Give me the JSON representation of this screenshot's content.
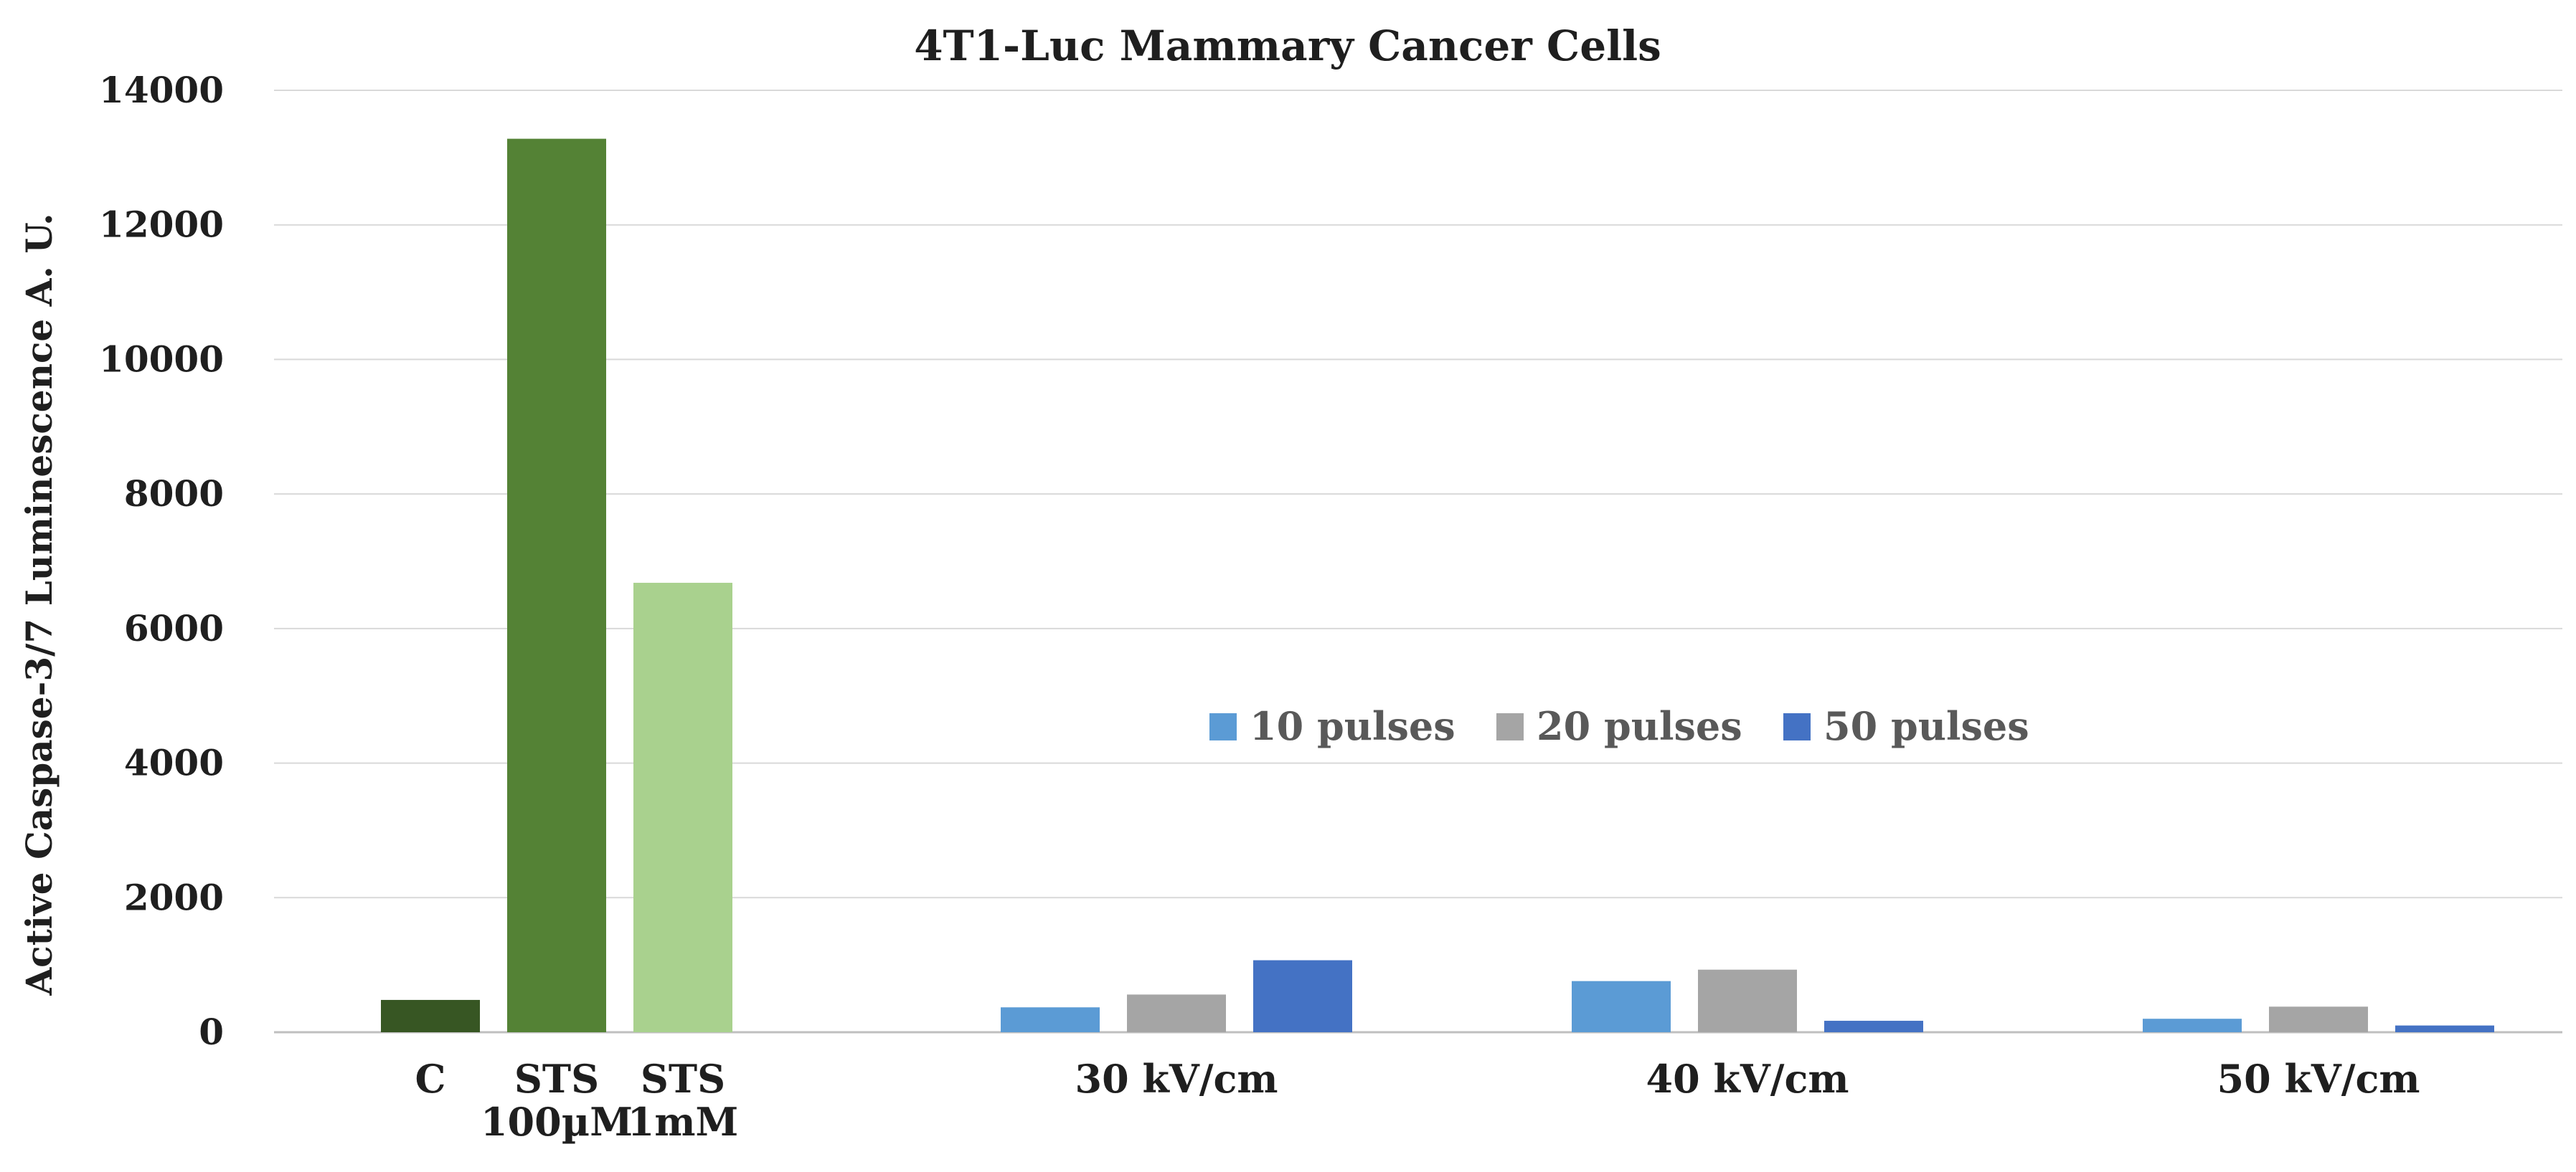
{
  "chart_data": {
    "type": "bar",
    "title": "4T1-Luc Mammary Cancer Cells",
    "xlabel": "",
    "ylabel": "Active Caspase-3/7 Luminescence  A. U.",
    "ylim": [
      0,
      14000
    ],
    "yticks": [
      0,
      2000,
      4000,
      6000,
      8000,
      10000,
      12000,
      14000
    ],
    "ytick_labels": [
      "0",
      "2000",
      "4000",
      "6000",
      "8000",
      "10000",
      "12000",
      "14000"
    ],
    "grid": true,
    "legend_position": "center",
    "legend": [
      {
        "name": "10 pulses",
        "color": "#5b9bd5"
      },
      {
        "name": "20 pulses",
        "color": "#a5a5a5"
      },
      {
        "name": "50 pulses",
        "color": "#4472c4"
      }
    ],
    "controls": {
      "labels": [
        [
          "C"
        ],
        [
          "STS",
          "100µM"
        ],
        [
          "STS",
          "1mM"
        ]
      ],
      "values": [
        480,
        13280,
        6680
      ],
      "colors": [
        "#375623",
        "#548235",
        "#a9d18e"
      ]
    },
    "categories": [
      "30 kV/cm",
      "40 kV/cm",
      "50 kV/cm"
    ],
    "series": [
      {
        "name": "10 pulses",
        "values": [
          370,
          760,
          200
        ]
      },
      {
        "name": "20 pulses",
        "values": [
          560,
          930,
          380
        ]
      },
      {
        "name": "50 pulses",
        "values": [
          1070,
          170,
          100
        ]
      }
    ]
  }
}
